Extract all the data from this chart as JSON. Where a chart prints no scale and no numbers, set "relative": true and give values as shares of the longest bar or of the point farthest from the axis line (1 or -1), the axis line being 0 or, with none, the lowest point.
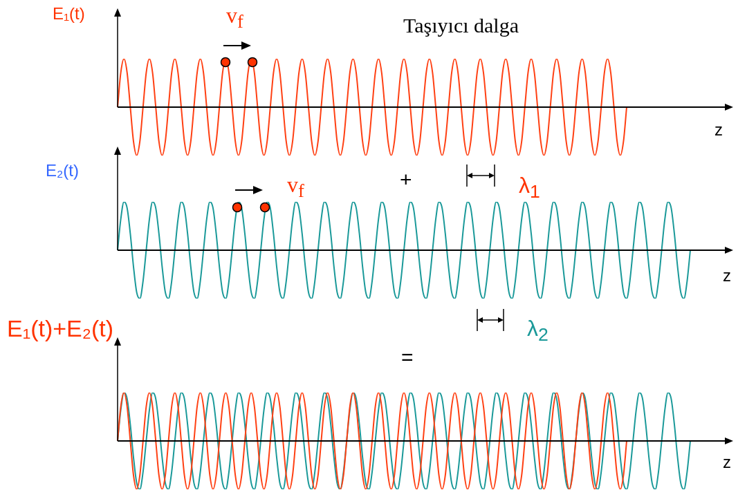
{
  "chart_data": [
    {
      "type": "line",
      "relative": true,
      "title": "Taşıyıcı dalga",
      "xlabel": "z",
      "ylabel": "E₁(t)",
      "annotations": [
        "v$_{f}$",
        "λ$_{1}$"
      ],
      "categories": [
        null,
        null,
        null,
        null,
        null,
        null,
        null,
        null,
        null,
        null,
        null,
        null,
        null,
        null,
        null,
        null,
        null,
        null,
        null,
        null,
        null,
        null,
        null,
        null,
        null,
        null,
        null,
        null,
        null,
        null,
        null,
        null,
        null,
        null,
        null,
        null,
        null,
        null,
        null,
        null,
        null,
        null,
        null,
        null,
        null,
        null,
        null,
        null,
        null,
        null,
        null,
        null,
        null,
        null,
        null,
        null,
        null,
        null,
        null,
        null,
        null,
        null,
        null,
        null,
        null,
        null,
        null,
        null,
        null,
        null,
        null,
        null,
        null,
        null,
        null,
        null,
        null,
        null,
        null,
        null,
        null,
        null,
        null,
        null,
        null,
        null,
        null,
        null,
        null,
        null,
        null,
        null,
        null,
        null,
        null,
        null,
        null,
        null,
        null,
        null,
        null,
        null,
        null,
        null,
        null,
        null,
        null,
        null,
        null,
        null,
        null,
        null,
        null,
        null,
        null,
        null,
        null,
        null,
        null,
        null,
        null,
        null,
        null,
        null,
        null,
        null,
        null,
        null,
        null,
        null,
        null,
        null,
        null,
        null,
        null,
        null,
        null,
        null,
        null,
        null,
        null,
        null,
        null,
        null,
        null,
        null,
        null,
        null,
        null,
        null,
        null,
        null,
        null,
        null,
        null,
        null,
        null,
        null,
        null,
        null,
        null,
        null,
        null,
        null,
        null,
        null,
        null,
        null,
        null,
        null,
        null,
        null,
        null,
        null,
        null,
        null,
        null,
        null,
        null,
        null,
        null
      ],
      "series": [
        {
          "color": "#ff4013",
          "values": [
            0,
            0.71,
            1,
            0.71,
            0,
            -0.71,
            -1,
            -0.71,
            0,
            0.71,
            1,
            0.71,
            0,
            -0.71,
            -1,
            -0.71,
            0,
            0.71,
            1,
            0.71,
            0,
            -0.71,
            -1,
            -0.71,
            0,
            0.71,
            1,
            0.71,
            0,
            -0.71,
            -1,
            -0.71,
            0,
            0.71,
            1,
            0.71,
            0,
            -0.71,
            -1,
            -0.71,
            0,
            0.71,
            1,
            0.71,
            0,
            -0.71,
            -1,
            -0.71,
            0,
            0.71,
            1,
            0.71,
            0,
            -0.71,
            -1,
            -0.71,
            0,
            0.71,
            1,
            0.71,
            0,
            -0.71,
            -1,
            -0.71,
            0,
            0.71,
            1,
            0.71,
            0,
            -0.71,
            -1,
            -0.71,
            0,
            0.71,
            1,
            0.71,
            0,
            -0.71,
            -1,
            -0.71,
            0,
            0.71,
            1,
            0.71,
            0,
            -0.71,
            -1,
            -0.71,
            0,
            0.71,
            1,
            0.71,
            0,
            -0.71,
            -1,
            -0.71,
            0,
            0.71,
            1,
            0.71,
            0,
            -0.71,
            -1,
            -0.71,
            0,
            0.71,
            1,
            0.71,
            0,
            -0.71,
            -1,
            -0.71,
            0,
            0.71,
            1,
            0.71,
            0,
            -0.71,
            -1,
            -0.71,
            0,
            0.71,
            1,
            0.71,
            0,
            -0.71,
            -1,
            -0.71,
            0,
            0.71,
            1,
            0.71,
            0,
            -0.71,
            -1,
            -0.71,
            0,
            0.71,
            1,
            0.71,
            0,
            -0.71,
            -1,
            -0.71,
            0,
            0.71,
            1,
            0.71,
            0,
            -0.71,
            -1,
            -0.71,
            0,
            0.71,
            1,
            0.71,
            0,
            -0.71,
            -1,
            -0.71,
            0,
            null,
            null,
            null,
            null,
            null,
            null,
            null,
            null,
            null,
            null,
            null,
            null,
            null,
            null,
            null,
            null,
            null,
            null,
            null,
            null
          ]
        }
      ]
    },
    {
      "type": "line",
      "relative": true,
      "xlabel": "z",
      "ylabel": "E₂(t)",
      "annotations": [
        "v$_{f}$",
        "+",
        "λ$_{2}$"
      ],
      "categories": [
        null,
        null,
        null,
        null,
        null,
        null,
        null,
        null,
        null,
        null,
        null,
        null,
        null,
        null,
        null,
        null,
        null,
        null,
        null,
        null,
        null,
        null,
        null,
        null,
        null,
        null,
        null,
        null,
        null,
        null,
        null,
        null,
        null,
        null,
        null,
        null,
        null,
        null,
        null,
        null,
        null,
        null,
        null,
        null,
        null,
        null,
        null,
        null,
        null,
        null,
        null,
        null,
        null,
        null,
        null,
        null,
        null,
        null,
        null,
        null,
        null,
        null,
        null,
        null,
        null,
        null,
        null,
        null,
        null,
        null,
        null,
        null,
        null,
        null,
        null,
        null,
        null,
        null,
        null,
        null,
        null,
        null,
        null,
        null,
        null,
        null,
        null,
        null,
        null,
        null,
        null,
        null,
        null,
        null,
        null,
        null,
        null,
        null,
        null,
        null,
        null,
        null,
        null,
        null,
        null,
        null,
        null,
        null,
        null,
        null,
        null,
        null,
        null,
        null,
        null,
        null,
        null,
        null,
        null,
        null,
        null,
        null,
        null,
        null,
        null,
        null,
        null,
        null,
        null,
        null,
        null,
        null,
        null,
        null,
        null,
        null,
        null,
        null,
        null,
        null,
        null,
        null,
        null,
        null,
        null,
        null,
        null,
        null,
        null,
        null,
        null,
        null,
        null,
        null,
        null,
        null,
        null,
        null,
        null,
        null,
        null,
        null,
        null,
        null,
        null,
        null,
        null,
        null,
        null,
        null,
        null,
        null,
        null,
        null,
        null,
        null,
        null,
        null,
        null,
        null,
        null
      ],
      "series": [
        {
          "color": "#1a9999",
          "values": [
            0,
            0.64,
            1,
            0.87,
            0.34,
            -0.34,
            -0.87,
            -1,
            -0.64,
            0,
            0.64,
            1,
            0.87,
            0.34,
            -0.34,
            -0.87,
            -1,
            -0.64,
            0,
            0.64,
            1,
            0.87,
            0.34,
            -0.34,
            -0.87,
            -1,
            -0.64,
            0,
            0.64,
            1,
            0.87,
            0.34,
            -0.34,
            -0.87,
            -1,
            -0.64,
            0,
            0.64,
            1,
            0.87,
            0.34,
            -0.34,
            -0.87,
            -1,
            -0.64,
            0,
            0.64,
            1,
            0.87,
            0.34,
            -0.34,
            -0.87,
            -1,
            -0.64,
            0,
            0.64,
            1,
            0.87,
            0.34,
            -0.34,
            -0.87,
            -1,
            -0.64,
            0,
            0.64,
            1,
            0.87,
            0.34,
            -0.34,
            -0.87,
            -1,
            -0.64,
            0,
            0.64,
            1,
            0.87,
            0.34,
            -0.34,
            -0.87,
            -1,
            -0.64,
            0,
            0.64,
            1,
            0.87,
            0.34,
            -0.34,
            -0.87,
            -1,
            -0.64,
            0,
            0.64,
            1,
            0.87,
            0.34,
            -0.34,
            -0.87,
            -1,
            -0.64,
            0,
            0.64,
            1,
            0.87,
            0.34,
            -0.34,
            -0.87,
            -1,
            -0.64,
            0,
            0.64,
            1,
            0.87,
            0.34,
            -0.34,
            -0.87,
            -1,
            -0.64,
            0,
            0.64,
            1,
            0.87,
            0.34,
            -0.34,
            -0.87,
            -1,
            -0.64,
            0,
            0.64,
            1,
            0.87,
            0.34,
            -0.34,
            -0.87,
            -1,
            -0.64,
            0,
            0.64,
            1,
            0.87,
            0.34,
            -0.34,
            -0.87,
            -1,
            -0.64,
            0,
            0.64,
            1,
            0.87,
            0.34,
            -0.34,
            -0.87,
            -1,
            -0.64,
            0,
            0.64,
            1,
            0.87,
            0.34,
            -0.34,
            -0.87,
            -1,
            -0.64,
            0,
            0.64,
            1,
            0.87,
            0.34,
            -0.34,
            -0.87,
            -1,
            -0.64,
            0,
            0.64,
            1,
            0.87,
            0.34,
            -0.34,
            -0.87,
            -1,
            -0.64,
            0
          ]
        }
      ]
    },
    {
      "type": "line",
      "relative": true,
      "xlabel": "z",
      "ylabel": "E₁(t)+E₂(t)",
      "annotations": [
        "="
      ],
      "categories": [
        null,
        null,
        null,
        null,
        null,
        null,
        null,
        null,
        null,
        null,
        null,
        null,
        null,
        null,
        null,
        null,
        null,
        null,
        null,
        null,
        null,
        null,
        null,
        null,
        null,
        null,
        null,
        null,
        null,
        null,
        null,
        null,
        null,
        null,
        null,
        null,
        null,
        null,
        null,
        null,
        null,
        null,
        null,
        null,
        null,
        null,
        null,
        null,
        null,
        null,
        null,
        null,
        null,
        null,
        null,
        null,
        null,
        null,
        null,
        null,
        null,
        null,
        null,
        null,
        null,
        null,
        null,
        null,
        null,
        null,
        null,
        null,
        null,
        null,
        null,
        null,
        null,
        null,
        null,
        null,
        null,
        null,
        null,
        null,
        null,
        null,
        null,
        null,
        null,
        null,
        null,
        null,
        null,
        null,
        null,
        null,
        null,
        null,
        null,
        null,
        null,
        null,
        null,
        null,
        null,
        null,
        null,
        null,
        null,
        null,
        null,
        null,
        null,
        null,
        null,
        null,
        null,
        null,
        null,
        null,
        null,
        null,
        null,
        null,
        null,
        null,
        null,
        null,
        null,
        null,
        null,
        null,
        null,
        null,
        null,
        null,
        null,
        null,
        null,
        null,
        null,
        null,
        null,
        null,
        null,
        null,
        null,
        null,
        null,
        null,
        null,
        null,
        null,
        null,
        null,
        null,
        null,
        null,
        null,
        null,
        null,
        null,
        null,
        null,
        null,
        null,
        null,
        null,
        null,
        null,
        null,
        null,
        null,
        null,
        null,
        null,
        null,
        null,
        null,
        null,
        null
      ],
      "series": [
        {
          "color": "#ff4013",
          "values": [
            0,
            0.71,
            1,
            0.71,
            0,
            -0.71,
            -1,
            -0.71,
            0,
            0.71,
            1,
            0.71,
            0,
            -0.71,
            -1,
            -0.71,
            0,
            0.71,
            1,
            0.71,
            0,
            -0.71,
            -1,
            -0.71,
            0,
            0.71,
            1,
            0.71,
            0,
            -0.71,
            -1,
            -0.71,
            0,
            0.71,
            1,
            0.71,
            0,
            -0.71,
            -1,
            -0.71,
            0,
            0.71,
            1,
            0.71,
            0,
            -0.71,
            -1,
            -0.71,
            0,
            0.71,
            1,
            0.71,
            0,
            -0.71,
            -1,
            -0.71,
            0,
            0.71,
            1,
            0.71,
            0,
            -0.71,
            -1,
            -0.71,
            0,
            0.71,
            1,
            0.71,
            0,
            -0.71,
            -1,
            -0.71,
            0,
            0.71,
            1,
            0.71,
            0,
            -0.71,
            -1,
            -0.71,
            0,
            0.71,
            1,
            0.71,
            0,
            -0.71,
            -1,
            -0.71,
            0,
            0.71,
            1,
            0.71,
            0,
            -0.71,
            -1,
            -0.71,
            0,
            0.71,
            1,
            0.71,
            0,
            -0.71,
            -1,
            -0.71,
            0,
            0.71,
            1,
            0.71,
            0,
            -0.71,
            -1,
            -0.71,
            0,
            0.71,
            1,
            0.71,
            0,
            -0.71,
            -1,
            -0.71,
            0,
            0.71,
            1,
            0.71,
            0,
            -0.71,
            -1,
            -0.71,
            0,
            0.71,
            1,
            0.71,
            0,
            -0.71,
            -1,
            -0.71,
            0,
            0.71,
            1,
            0.71,
            0,
            -0.71,
            -1,
            -0.71,
            0,
            0.71,
            1,
            0.71,
            0,
            -0.71,
            -1,
            -0.71,
            0,
            0.71,
            1,
            0.71,
            0,
            -0.71,
            -1,
            -0.71,
            0,
            null,
            null,
            null,
            null,
            null,
            null,
            null,
            null,
            null,
            null,
            null,
            null,
            null,
            null,
            null,
            null,
            null,
            null,
            null,
            null
          ]
        },
        {
          "color": "#1a9999",
          "values": [
            0,
            0.64,
            1,
            0.87,
            0.34,
            -0.34,
            -0.87,
            -1,
            -0.64,
            0,
            0.64,
            1,
            0.87,
            0.34,
            -0.34,
            -0.87,
            -1,
            -0.64,
            0,
            0.64,
            1,
            0.87,
            0.34,
            -0.34,
            -0.87,
            -1,
            -0.64,
            0,
            0.64,
            1,
            0.87,
            0.34,
            -0.34,
            -0.87,
            -1,
            -0.64,
            0,
            0.64,
            1,
            0.87,
            0.34,
            -0.34,
            -0.87,
            -1,
            -0.64,
            0,
            0.64,
            1,
            0.87,
            0.34,
            -0.34,
            -0.87,
            -1,
            -0.64,
            0,
            0.64,
            1,
            0.87,
            0.34,
            -0.34,
            -0.87,
            -1,
            -0.64,
            0,
            0.64,
            1,
            0.87,
            0.34,
            -0.34,
            -0.87,
            -1,
            -0.64,
            0,
            0.64,
            1,
            0.87,
            0.34,
            -0.34,
            -0.87,
            -1,
            -0.64,
            0,
            0.64,
            1,
            0.87,
            0.34,
            -0.34,
            -0.87,
            -1,
            -0.64,
            0,
            0.64,
            1,
            0.87,
            0.34,
            -0.34,
            -0.87,
            -1,
            -0.64,
            0,
            0.64,
            1,
            0.87,
            0.34,
            -0.34,
            -0.87,
            -1,
            -0.64,
            0,
            0.64,
            1,
            0.87,
            0.34,
            -0.34,
            -0.87,
            -1,
            -0.64,
            0,
            0.64,
            1,
            0.87,
            0.34,
            -0.34,
            -0.87,
            -1,
            -0.64,
            0,
            0.64,
            1,
            0.87,
            0.34,
            -0.34,
            -0.87,
            -1,
            -0.64,
            0,
            0.64,
            1,
            0.87,
            0.34,
            -0.34,
            -0.87,
            -1,
            -0.64,
            0,
            0.64,
            1,
            0.87,
            0.34,
            -0.34,
            -0.87,
            -1,
            -0.64,
            0,
            0.64,
            1,
            0.87,
            0.34,
            -0.34,
            -0.87,
            -1,
            -0.64,
            0,
            0.64,
            1,
            0.87,
            0.34,
            -0.34,
            -0.87,
            -1,
            -0.64,
            0,
            0.64,
            1,
            0.87,
            0.34,
            -0.34,
            -0.87,
            -1,
            -0.64,
            0
          ]
        }
      ]
    }
  ]
}
